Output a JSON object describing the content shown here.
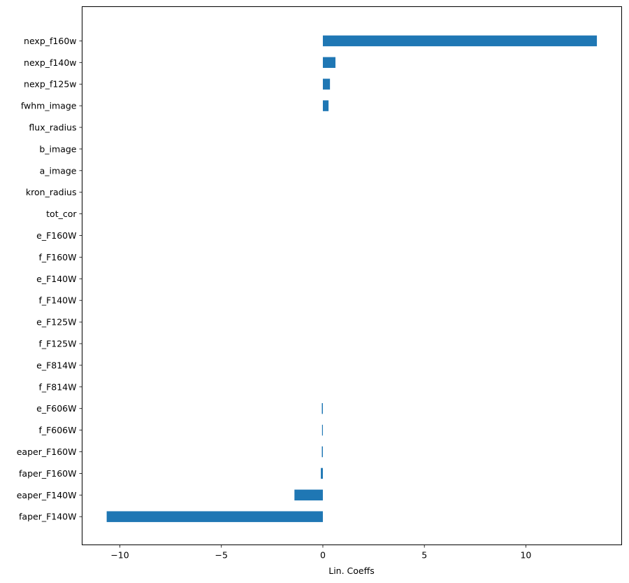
{
  "chart_data": {
    "type": "bar",
    "orientation": "horizontal",
    "title": "",
    "xlabel": "Lin. Coeffs",
    "ylabel": "",
    "xlim": [
      -11.86,
      14.72
    ],
    "xticks": [
      -10,
      -5,
      0,
      5,
      10
    ],
    "xtick_labels": [
      "−10",
      "−5",
      "0",
      "5",
      "10"
    ],
    "grid": false,
    "legend": false,
    "bar_color": "#1f77b4",
    "categories": [
      "faper_F140W",
      "eaper_F140W",
      "faper_F160W",
      "eaper_F160W",
      "f_F606W",
      "e_F606W",
      "f_F814W",
      "e_F814W",
      "f_F125W",
      "e_F125W",
      "f_F140W",
      "e_F140W",
      "f_F160W",
      "e_F160W",
      "tot_cor",
      "kron_radius",
      "a_image",
      "b_image",
      "flux_radius",
      "fwhm_image",
      "nexp_f125w",
      "nexp_f140w",
      "nexp_f160w"
    ],
    "values": [
      -10.65,
      -1.4,
      -0.1,
      -0.05,
      -0.04,
      -0.05,
      0.0,
      0.0,
      0.0,
      0.0,
      0.0,
      0.0,
      0.0,
      0.0,
      0.0,
      0.0,
      0.0,
      0.0,
      0.0,
      0.28,
      0.35,
      0.62,
      13.5
    ]
  }
}
